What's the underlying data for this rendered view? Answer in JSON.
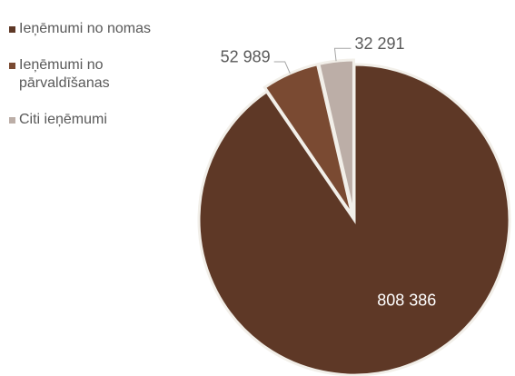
{
  "chart_data": {
    "type": "pie",
    "categories": [
      "Ieņēmumi no nomas",
      "Ieņēmumi no pārvaldīšanas",
      "Citi ieņēmumi"
    ],
    "values": [
      808386,
      52989,
      32291
    ],
    "value_labels": [
      "808 386",
      "52 989",
      "32 291"
    ],
    "colors": [
      "#5e3826",
      "#7a4a32",
      "#bcaea7"
    ],
    "legend": "left"
  }
}
